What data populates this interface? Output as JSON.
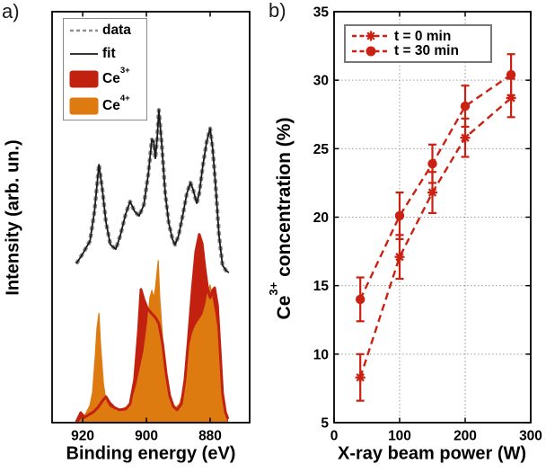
{
  "figure": {
    "background": "#ffffff"
  },
  "colors": {
    "ce3_red": "#c32110",
    "ce4_orange": "#de7b10",
    "series_red": "#cb2112",
    "data_gray": "#909090",
    "fit_black": "#1a1a1a",
    "grid_gray": "#999999",
    "axis_black": "#000000",
    "text_black": "#000000",
    "legend_border_a": "#8a8a8a",
    "legend_border_b": "#777777"
  },
  "panel_a": {
    "tag": "a)",
    "xlabel": "Binding energy (eV)",
    "ylabel": "Intensity (arb. un.)",
    "legend_data": "data",
    "legend_fit": "fit",
    "legend_ce3": {
      "text": "Ce",
      "sup": "3+"
    },
    "legend_ce4": {
      "text": "Ce",
      "sup": "4+"
    }
  },
  "panel_b": {
    "tag": "b)",
    "xlabel": "X-ray beam power (W)",
    "ylabel_prefix": "Ce",
    "ylabel_sup": "3+",
    "ylabel_rest": " concentration (%)",
    "legend_t0": "t = 0 min",
    "legend_t30": "t = 30 min"
  },
  "chart_data": [
    {
      "panel": "a",
      "type": "area",
      "xlabel": "Binding energy (eV)",
      "ylabel": "Intensity (arb. un.)",
      "x_axis_reversed": true,
      "xlim": [
        929.6,
        867.6
      ],
      "ylim": [
        0,
        1
      ],
      "x_ticks": [
        920,
        900,
        880
      ],
      "grid": false,
      "legend_position": "upper-left",
      "legend_entries": [
        "data",
        "fit",
        "Ce3+",
        "Ce4+"
      ],
      "series": [
        {
          "name": "data",
          "style": "line",
          "line": "dashed",
          "dash": "4.5 3.8",
          "width": 4.5,
          "color": "#909090",
          "points": [
            [
              922.0,
              0.387
            ],
            [
              920.0,
              0.411
            ],
            [
              917.7,
              0.442
            ],
            [
              916.3,
              0.514
            ],
            [
              914.9,
              0.628
            ],
            [
              913.8,
              0.565
            ],
            [
              912.7,
              0.488
            ],
            [
              911.3,
              0.433
            ],
            [
              909.6,
              0.422
            ],
            [
              908.2,
              0.455
            ],
            [
              906.5,
              0.508
            ],
            [
              905.1,
              0.538
            ],
            [
              903.7,
              0.514
            ],
            [
              902.3,
              0.503
            ],
            [
              900.8,
              0.53
            ],
            [
              899.4,
              0.606
            ],
            [
              898.3,
              0.689
            ],
            [
              897.7,
              0.683
            ],
            [
              897.2,
              0.643
            ],
            [
              896.6,
              0.694
            ],
            [
              896.1,
              0.761
            ],
            [
              895.2,
              0.678
            ],
            [
              894.1,
              0.558
            ],
            [
              893.0,
              0.486
            ],
            [
              891.8,
              0.446
            ],
            [
              891.0,
              0.433
            ],
            [
              889.9,
              0.455
            ],
            [
              888.5,
              0.508
            ],
            [
              887.3,
              0.558
            ],
            [
              886.2,
              0.584
            ],
            [
              885.4,
              0.569
            ],
            [
              884.2,
              0.534
            ],
            [
              883.4,
              0.558
            ],
            [
              882.3,
              0.624
            ],
            [
              881.1,
              0.683
            ],
            [
              880.0,
              0.716
            ],
            [
              879.2,
              0.667
            ],
            [
              878.3,
              0.58
            ],
            [
              877.2,
              0.455
            ],
            [
              876.1,
              0.383
            ],
            [
              875.0,
              0.37
            ],
            [
              874.1,
              0.365
            ]
          ]
        },
        {
          "name": "fit",
          "style": "line",
          "line": "solid",
          "width": 1.8,
          "color": "#1a1a1a",
          "points_from": "data"
        },
        {
          "name": "Ce3+",
          "style": "area",
          "color": "#c32110",
          "outline_width": 3,
          "points": [
            [
              922.0,
              0.002
            ],
            [
              920.6,
              0.024
            ],
            [
              919.4,
              0.013
            ],
            [
              918.0,
              0.02
            ],
            [
              916.6,
              0.026
            ],
            [
              915.2,
              0.037
            ],
            [
              913.8,
              0.053
            ],
            [
              912.7,
              0.063
            ],
            [
              911.5,
              0.048
            ],
            [
              910.1,
              0.037
            ],
            [
              908.5,
              0.031
            ],
            [
              906.5,
              0.033
            ],
            [
              905.1,
              0.046
            ],
            [
              903.7,
              0.105
            ],
            [
              902.5,
              0.223
            ],
            [
              901.7,
              0.324
            ],
            [
              900.8,
              0.3
            ],
            [
              899.7,
              0.278
            ],
            [
              898.3,
              0.265
            ],
            [
              897.2,
              0.256
            ],
            [
              896.1,
              0.241
            ],
            [
              894.9,
              0.192
            ],
            [
              893.8,
              0.12
            ],
            [
              892.7,
              0.066
            ],
            [
              891.5,
              0.039
            ],
            [
              890.4,
              0.031
            ],
            [
              889.0,
              0.046
            ],
            [
              887.9,
              0.105
            ],
            [
              886.8,
              0.206
            ],
            [
              885.6,
              0.324
            ],
            [
              884.5,
              0.416
            ],
            [
              883.4,
              0.458
            ],
            [
              882.5,
              0.436
            ],
            [
              881.7,
              0.379
            ],
            [
              880.8,
              0.326
            ],
            [
              880.0,
              0.304
            ],
            [
              879.2,
              0.322
            ],
            [
              878.6,
              0.328
            ],
            [
              877.7,
              0.285
            ],
            [
              876.9,
              0.18
            ],
            [
              876.1,
              0.072
            ],
            [
              875.2,
              0.026
            ],
            [
              874.4,
              0.009
            ]
          ]
        },
        {
          "name": "Ce4+",
          "style": "area",
          "color": "#de7b10",
          "outline_width": 1.2,
          "points": [
            [
              921.1,
              0.002
            ],
            [
              919.2,
              0.02
            ],
            [
              917.7,
              0.042
            ],
            [
              916.9,
              0.074
            ],
            [
              916.1,
              0.157
            ],
            [
              915.5,
              0.231
            ],
            [
              914.9,
              0.266
            ],
            [
              914.4,
              0.192
            ],
            [
              913.5,
              0.096
            ],
            [
              912.7,
              0.052
            ],
            [
              911.5,
              0.037
            ],
            [
              909.9,
              0.031
            ],
            [
              907.9,
              0.033
            ],
            [
              905.9,
              0.039
            ],
            [
              904.5,
              0.055
            ],
            [
              903.1,
              0.09
            ],
            [
              902.0,
              0.129
            ],
            [
              900.8,
              0.173
            ],
            [
              899.7,
              0.239
            ],
            [
              898.9,
              0.304
            ],
            [
              898.3,
              0.322
            ],
            [
              897.7,
              0.304
            ],
            [
              897.2,
              0.326
            ],
            [
              896.3,
              0.394
            ],
            [
              895.8,
              0.304
            ],
            [
              894.9,
              0.205
            ],
            [
              894.1,
              0.133
            ],
            [
              893.0,
              0.074
            ],
            [
              891.8,
              0.046
            ],
            [
              890.7,
              0.037
            ],
            [
              889.6,
              0.046
            ],
            [
              888.5,
              0.074
            ],
            [
              887.3,
              0.129
            ],
            [
              886.5,
              0.184
            ],
            [
              885.6,
              0.215
            ],
            [
              884.5,
              0.237
            ],
            [
              883.4,
              0.25
            ],
            [
              882.3,
              0.263
            ],
            [
              881.4,
              0.287
            ],
            [
              880.6,
              0.322
            ],
            [
              880.0,
              0.335
            ],
            [
              879.4,
              0.304
            ],
            [
              878.6,
              0.269
            ],
            [
              878.0,
              0.239
            ],
            [
              877.5,
              0.2
            ],
            [
              876.9,
              0.156
            ],
            [
              876.3,
              0.096
            ],
            [
              875.8,
              0.046
            ],
            [
              875.2,
              0.02
            ],
            [
              874.7,
              0.009
            ]
          ]
        }
      ]
    },
    {
      "panel": "b",
      "type": "line",
      "xlabel": "X-ray beam power (W)",
      "ylabel": "Ce3+ concentration (%)",
      "xlim": [
        0,
        300
      ],
      "ylim": [
        5,
        35
      ],
      "x_ticks": [
        0,
        100,
        200,
        300
      ],
      "y_ticks": [
        5,
        10,
        15,
        20,
        25,
        30,
        35
      ],
      "grid": true,
      "grid_style": "dotted",
      "legend_position": "upper-left",
      "series": [
        {
          "name": "t = 0 min",
          "marker": "star",
          "line": "dashed",
          "color": "#cb2112",
          "x": [
            40,
            100,
            150,
            200,
            270
          ],
          "y": [
            8.3,
            17.1,
            21.8,
            25.8,
            28.7
          ],
          "yerr": [
            1.7,
            1.6,
            1.5,
            1.4,
            1.4
          ]
        },
        {
          "name": "t = 30 min",
          "marker": "circle",
          "line": "dashed",
          "color": "#cb2112",
          "x": [
            40,
            100,
            150,
            200,
            270
          ],
          "y": [
            14.0,
            20.1,
            23.9,
            28.1,
            30.4
          ],
          "yerr": [
            1.6,
            1.7,
            1.4,
            1.5,
            1.5
          ]
        }
      ]
    }
  ]
}
